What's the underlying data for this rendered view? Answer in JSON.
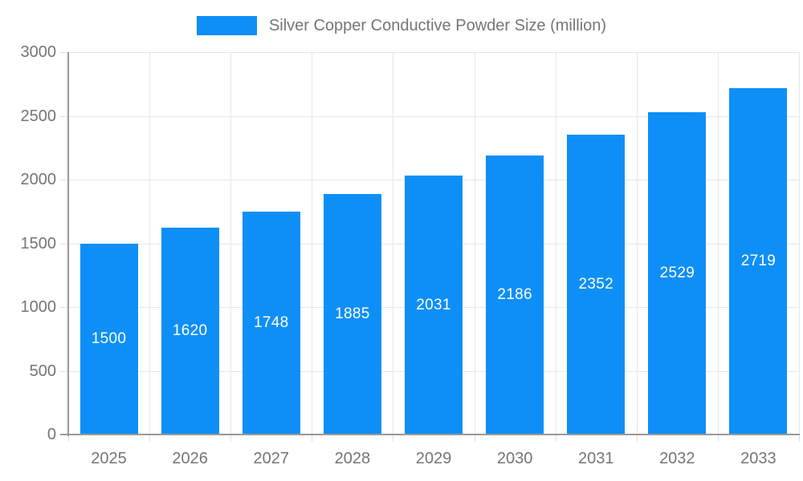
{
  "legend": {
    "label": "Silver Copper Conductive Powder Size (million)"
  },
  "chart_data": {
    "type": "bar",
    "title": "Silver Copper Conductive Powder Size (million)",
    "series_name": "Silver Copper Conductive Powder Size (million)",
    "categories": [
      "2025",
      "2026",
      "2027",
      "2028",
      "2029",
      "2030",
      "2031",
      "2032",
      "2033"
    ],
    "values": [
      1500,
      1620,
      1748,
      1885,
      2031,
      2186,
      2352,
      2529,
      2719
    ],
    "value_labels": [
      "1500",
      "1620",
      "1748",
      "1885",
      "2031",
      "2186",
      "2352",
      "2529",
      "2719"
    ],
    "xlabel": "",
    "ylabel": "",
    "ylim": [
      0,
      3000
    ],
    "y_ticks": [
      0,
      500,
      1000,
      1500,
      2000,
      2500,
      3000
    ],
    "grid": true,
    "legend_position": "top",
    "value_label_position": "inside-middle",
    "colors": {
      "bar": "#0e8ff7",
      "axis_label": "#757575",
      "legend_label": "#757575",
      "value_label": "#ffffff",
      "gridline": "#e6e6e6",
      "tick": "#e0e0e0",
      "axis_line": "#999999",
      "background": "#ffffff"
    }
  }
}
